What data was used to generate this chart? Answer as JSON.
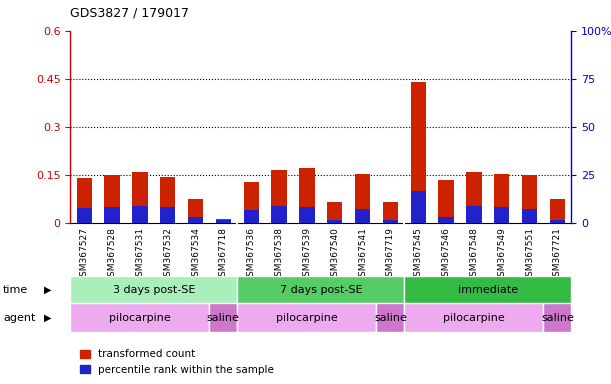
{
  "title": "GDS3827 / 179017",
  "samples": [
    "GSM367527",
    "GSM367528",
    "GSM367531",
    "GSM367532",
    "GSM367534",
    "GSM367718",
    "GSM367536",
    "GSM367538",
    "GSM367539",
    "GSM367540",
    "GSM367541",
    "GSM367719",
    "GSM367545",
    "GSM367546",
    "GSM367548",
    "GSM367549",
    "GSM367551",
    "GSM367721"
  ],
  "red_values": [
    0.14,
    0.148,
    0.16,
    0.143,
    0.075,
    0.012,
    0.128,
    0.165,
    0.172,
    0.065,
    0.152,
    0.065,
    0.44,
    0.135,
    0.158,
    0.152,
    0.148,
    0.075
  ],
  "blue_values": [
    0.045,
    0.05,
    0.052,
    0.05,
    0.018,
    0.01,
    0.04,
    0.052,
    0.05,
    0.01,
    0.042,
    0.01,
    0.1,
    0.018,
    0.052,
    0.048,
    0.042,
    0.01
  ],
  "ylim_left": [
    0,
    0.6
  ],
  "ylim_right": [
    0,
    100
  ],
  "yticks_left": [
    0,
    0.15,
    0.3,
    0.45,
    0.6
  ],
  "yticks_right": [
    0,
    25,
    50,
    75,
    100
  ],
  "ytick_labels_left": [
    "0",
    "0.15",
    "0.3",
    "0.45",
    "0.6"
  ],
  "ytick_labels_right": [
    "0",
    "25",
    "50",
    "75",
    "100%"
  ],
  "left_color": "#cc0000",
  "right_color": "#0000cc",
  "bar_red": "#cc2200",
  "bar_blue": "#2222cc",
  "bar_width": 0.55,
  "grid_lines": [
    0.15,
    0.3,
    0.45
  ],
  "time_groups": [
    {
      "label": "3 days post-SE",
      "start": 0,
      "end": 6,
      "color": "#aaeebb"
    },
    {
      "label": "7 days post-SE",
      "start": 6,
      "end": 12,
      "color": "#55cc66"
    },
    {
      "label": "immediate",
      "start": 12,
      "end": 18,
      "color": "#33bb44"
    }
  ],
  "agent_groups": [
    {
      "label": "pilocarpine",
      "start": 0,
      "end": 5,
      "color": "#eeaaee"
    },
    {
      "label": "saline",
      "start": 5,
      "end": 6,
      "color": "#cc77cc"
    },
    {
      "label": "pilocarpine",
      "start": 6,
      "end": 11,
      "color": "#eeaaee"
    },
    {
      "label": "saline",
      "start": 11,
      "end": 12,
      "color": "#cc77cc"
    },
    {
      "label": "pilocarpine",
      "start": 12,
      "end": 17,
      "color": "#eeaaee"
    },
    {
      "label": "saline",
      "start": 17,
      "end": 18,
      "color": "#cc77cc"
    }
  ],
  "legend_red": "transformed count",
  "legend_blue": "percentile rank within the sample",
  "bg_color": "#ffffff",
  "xtick_bg": "#dddddd",
  "n": 18
}
